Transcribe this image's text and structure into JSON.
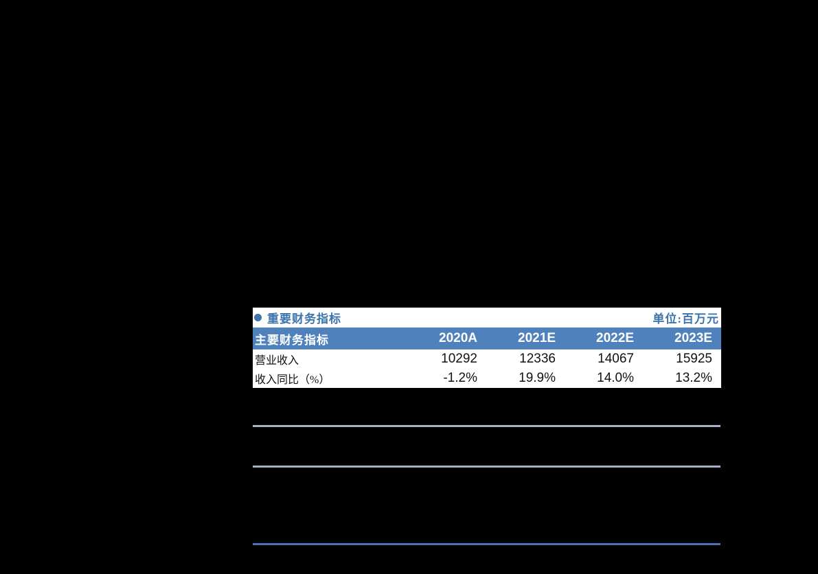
{
  "colors": {
    "page_background": "#000000",
    "table_header_bg": "#4f81bd",
    "table_header_text": "#ffffff",
    "title_text": "#3b74ae",
    "light_divider": "#a7b2ca",
    "dark_divider": "#4a72b4"
  },
  "table": {
    "bullet_icon": "circle-bullet",
    "title": "重要财务指标",
    "unit_label": "单位:百万元",
    "columns": [
      "主要财务指标",
      "2020A",
      "2021E",
      "2022E",
      "2023E"
    ],
    "rows": [
      {
        "label": "营业收入",
        "values": [
          "10292",
          "12336",
          "14067",
          "15925"
        ]
      },
      {
        "label": "收入同比（%）",
        "values": [
          "-1.2%",
          "19.9%",
          "14.0%",
          "13.2%"
        ]
      }
    ]
  },
  "chart_data": {
    "type": "table",
    "title": "重要财务指标",
    "unit": "百万元",
    "categories": [
      "2020A",
      "2021E",
      "2022E",
      "2023E"
    ],
    "series": [
      {
        "name": "营业收入",
        "values": [
          10292,
          12336,
          14067,
          15925
        ]
      },
      {
        "name": "收入同比（%）",
        "values": [
          -1.2,
          19.9,
          14.0,
          13.2
        ]
      }
    ]
  }
}
